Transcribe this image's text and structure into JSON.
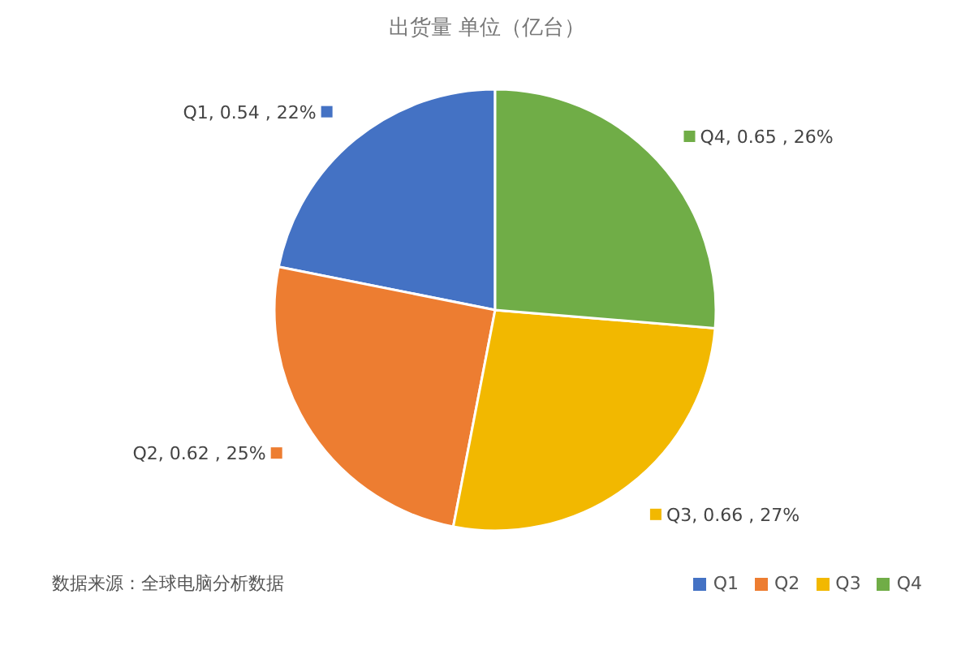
{
  "chart_data": {
    "type": "pie",
    "title": "出货量 单位（亿台）",
    "categories": [
      "Q1",
      "Q2",
      "Q3",
      "Q4"
    ],
    "values": [
      0.54,
      0.62,
      0.66,
      0.65
    ],
    "colors": [
      "#4472c4",
      "#ed7d31",
      "#f2b800",
      "#70ad47"
    ],
    "value_labels": [
      "Q1, 0.54 , 22%",
      "Q2, 0.62 , 25%",
      "Q3, 0.66 , 27%",
      "Q4, 0.65 , 26%"
    ],
    "legend": "bottom",
    "annotations": [
      "数据来源：全球电脑分析数据"
    ]
  }
}
